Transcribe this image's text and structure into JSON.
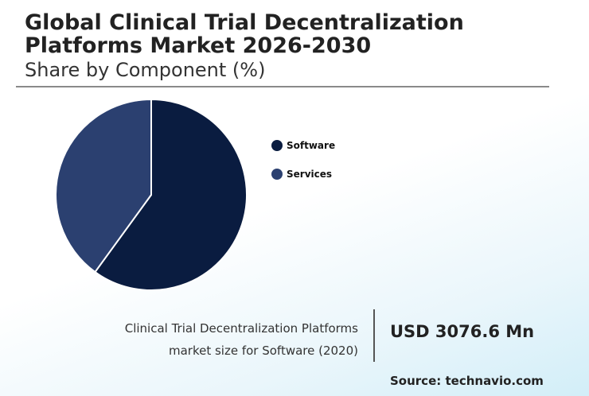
{
  "header": {
    "title": "Global Clinical Trial Decentralization Platforms Market 2026-2030",
    "subtitle": "Share by Component (%)"
  },
  "chart_data": {
    "type": "pie",
    "categories": [
      "Software",
      "Services"
    ],
    "values": [
      60,
      40
    ],
    "colors": [
      "#0a1c40",
      "#2b4070"
    ],
    "legend_position": "right"
  },
  "footer": {
    "caption_line1": "Clinical Trial Decentralization Platforms",
    "caption_line2": "market size for Software (2020)",
    "value": "USD 3076.6 Mn",
    "source": "Source: technavio.com"
  }
}
